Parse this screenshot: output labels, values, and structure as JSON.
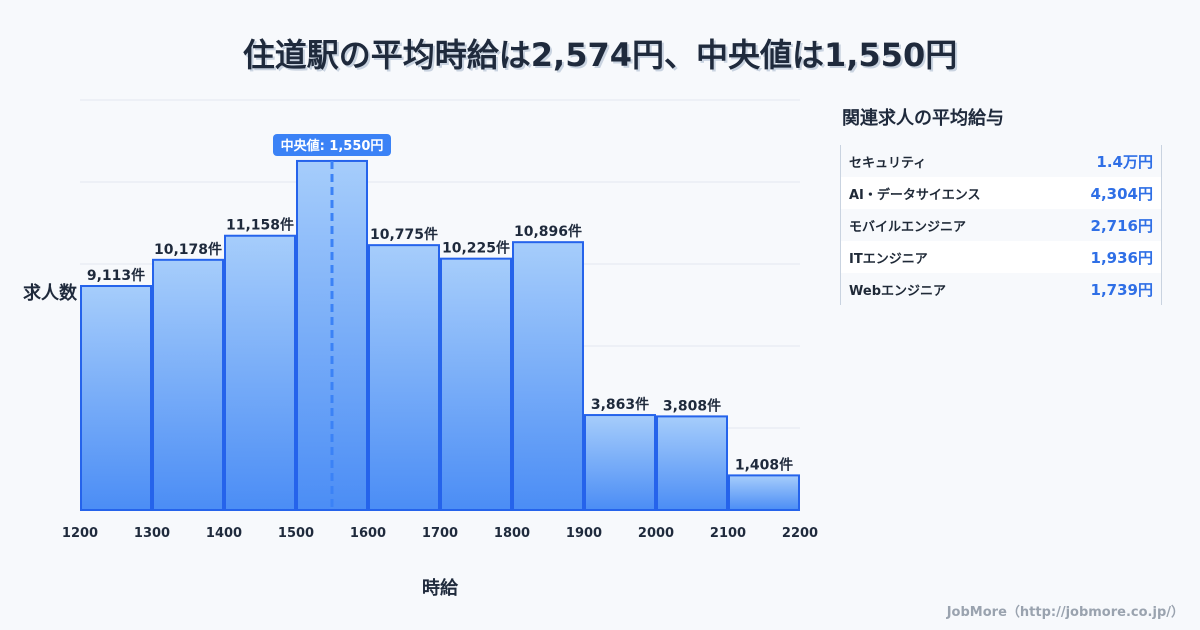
{
  "title": "住道駅の平均時給は2,574円、中央値は1,550円",
  "chart_data": {
    "type": "bar",
    "title": "住道駅の平均時給は2,574円、中央値は1,550円",
    "xlabel": "時給",
    "ylabel": "求人数",
    "x_ticks": [
      "1200",
      "1300",
      "1400",
      "1500",
      "1600",
      "1700",
      "1800",
      "1900",
      "2000",
      "2100",
      "2200"
    ],
    "bins": [
      [
        1200,
        1300
      ],
      [
        1300,
        1400
      ],
      [
        1400,
        1500
      ],
      [
        1500,
        1600
      ],
      [
        1600,
        1700
      ],
      [
        1700,
        1800
      ],
      [
        1800,
        1900
      ],
      [
        1900,
        2000
      ],
      [
        2000,
        2100
      ],
      [
        2100,
        2200
      ]
    ],
    "values": [
      9113,
      10178,
      11158,
      14200,
      10775,
      10225,
      10896,
      3863,
      3808,
      1408
    ],
    "labels": [
      "9,113件",
      "10,178件",
      "11,158件",
      null,
      "10,775件",
      "10,225件",
      "10,896件",
      "3,863件",
      "3,808件",
      "1,408件"
    ],
    "xlim": [
      1200,
      2200
    ],
    "ylim": [
      0,
      16680
    ],
    "grid": true,
    "median": 1550,
    "median_label": "中央値: 1,550円",
    "colors": {
      "bar_top": "#a6cdfb",
      "bar_bottom": "#4b8df5",
      "stroke": "#2563eb",
      "median": "#3b82f6"
    }
  },
  "side": {
    "title": "関連求人の平均給与",
    "rows": [
      {
        "name": "セキュリティ",
        "value": "1.4万円"
      },
      {
        "name": "AI・データサイエンス",
        "value": "4,304円"
      },
      {
        "name": "モバイルエンジニア",
        "value": "2,716円"
      },
      {
        "name": "ITエンジニア",
        "value": "1,936円"
      },
      {
        "name": "Webエンジニア",
        "value": "1,739円"
      }
    ]
  },
  "footer": "JobMore（http://jobmore.co.jp/）"
}
